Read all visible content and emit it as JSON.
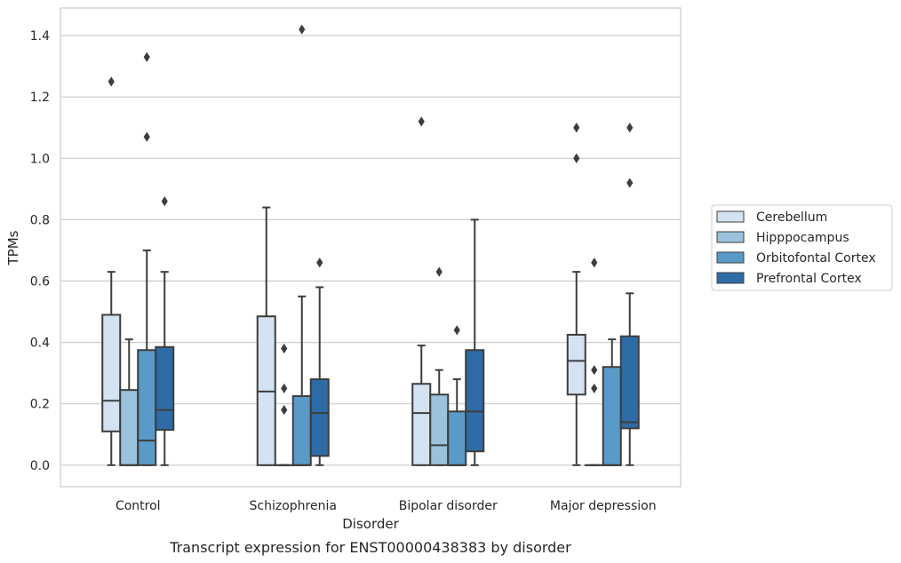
{
  "chart_data": {
    "type": "box",
    "title": "",
    "caption": "Transcript expression for ENST00000438383 by disorder",
    "xlabel": "Disorder",
    "ylabel": "TPMs",
    "ylim": [
      -0.07,
      1.49
    ],
    "yticks": [
      0.0,
      0.2,
      0.4,
      0.6,
      0.8,
      1.0,
      1.2,
      1.4
    ],
    "ytick_labels": [
      "0.0",
      "0.2",
      "0.4",
      "0.6",
      "0.8",
      "1.0",
      "1.2",
      "1.4"
    ],
    "grid": "horizontal",
    "legend_position": "right",
    "categories": [
      "Control",
      "Schizophrenia",
      "Bipolar disorder",
      "Major depression"
    ],
    "series": [
      {
        "name": "Cerebellum",
        "color": "#d3e3f2",
        "boxes": [
          {
            "q1": 0.11,
            "median": 0.21,
            "q3": 0.49,
            "whisker_low": 0.0,
            "whisker_high": 0.63,
            "outliers": [
              1.25
            ]
          },
          {
            "q1": 0.0,
            "median": 0.24,
            "q3": 0.485,
            "whisker_low": 0.0,
            "whisker_high": 0.84,
            "outliers": []
          },
          {
            "q1": 0.0,
            "median": 0.17,
            "q3": 0.265,
            "whisker_low": 0.0,
            "whisker_high": 0.39,
            "outliers": [
              1.12
            ]
          },
          {
            "q1": 0.23,
            "median": 0.34,
            "q3": 0.425,
            "whisker_low": 0.0,
            "whisker_high": 0.63,
            "outliers": [
              1.1,
              1.0
            ]
          }
        ]
      },
      {
        "name": "Hipppocampus",
        "color": "#9ac2dc",
        "boxes": [
          {
            "q1": 0.0,
            "median": 0.0,
            "q3": 0.245,
            "whisker_low": 0.0,
            "whisker_high": 0.41,
            "outliers": []
          },
          {
            "q1": 0.0,
            "median": 0.0,
            "q3": 0.0,
            "whisker_low": 0.0,
            "whisker_high": 0.0,
            "outliers": [
              0.38,
              0.25,
              0.18
            ]
          },
          {
            "q1": 0.0,
            "median": 0.065,
            "q3": 0.23,
            "whisker_low": 0.0,
            "whisker_high": 0.31,
            "outliers": [
              0.63
            ]
          },
          {
            "q1": 0.0,
            "median": 0.0,
            "q3": 0.0,
            "whisker_low": 0.0,
            "whisker_high": 0.0,
            "outliers": [
              0.66,
              0.31,
              0.25
            ]
          }
        ]
      },
      {
        "name": "Orbitofontal Cortex",
        "color": "#5a9ac8",
        "boxes": [
          {
            "q1": 0.0,
            "median": 0.08,
            "q3": 0.375,
            "whisker_low": 0.0,
            "whisker_high": 0.7,
            "outliers": [
              1.33,
              1.07
            ]
          },
          {
            "q1": 0.0,
            "median": 0.0,
            "q3": 0.225,
            "whisker_low": 0.0,
            "whisker_high": 0.55,
            "outliers": [
              1.42
            ]
          },
          {
            "q1": 0.0,
            "median": 0.0,
            "q3": 0.175,
            "whisker_low": 0.0,
            "whisker_high": 0.28,
            "outliers": [
              0.44
            ]
          },
          {
            "q1": 0.0,
            "median": 0.0,
            "q3": 0.32,
            "whisker_low": 0.0,
            "whisker_high": 0.41,
            "outliers": []
          }
        ]
      },
      {
        "name": "Prefrontal Cortex",
        "color": "#2d6ca6",
        "boxes": [
          {
            "q1": 0.115,
            "median": 0.18,
            "q3": 0.385,
            "whisker_low": 0.0,
            "whisker_high": 0.63,
            "outliers": [
              0.86
            ]
          },
          {
            "q1": 0.03,
            "median": 0.17,
            "q3": 0.28,
            "whisker_low": 0.0,
            "whisker_high": 0.58,
            "outliers": [
              0.66
            ]
          },
          {
            "q1": 0.045,
            "median": 0.175,
            "q3": 0.375,
            "whisker_low": 0.0,
            "whisker_high": 0.8,
            "outliers": []
          },
          {
            "q1": 0.12,
            "median": 0.14,
            "q3": 0.42,
            "whisker_low": 0.0,
            "whisker_high": 0.56,
            "outliers": [
              1.1,
              0.92
            ]
          }
        ]
      }
    ]
  }
}
